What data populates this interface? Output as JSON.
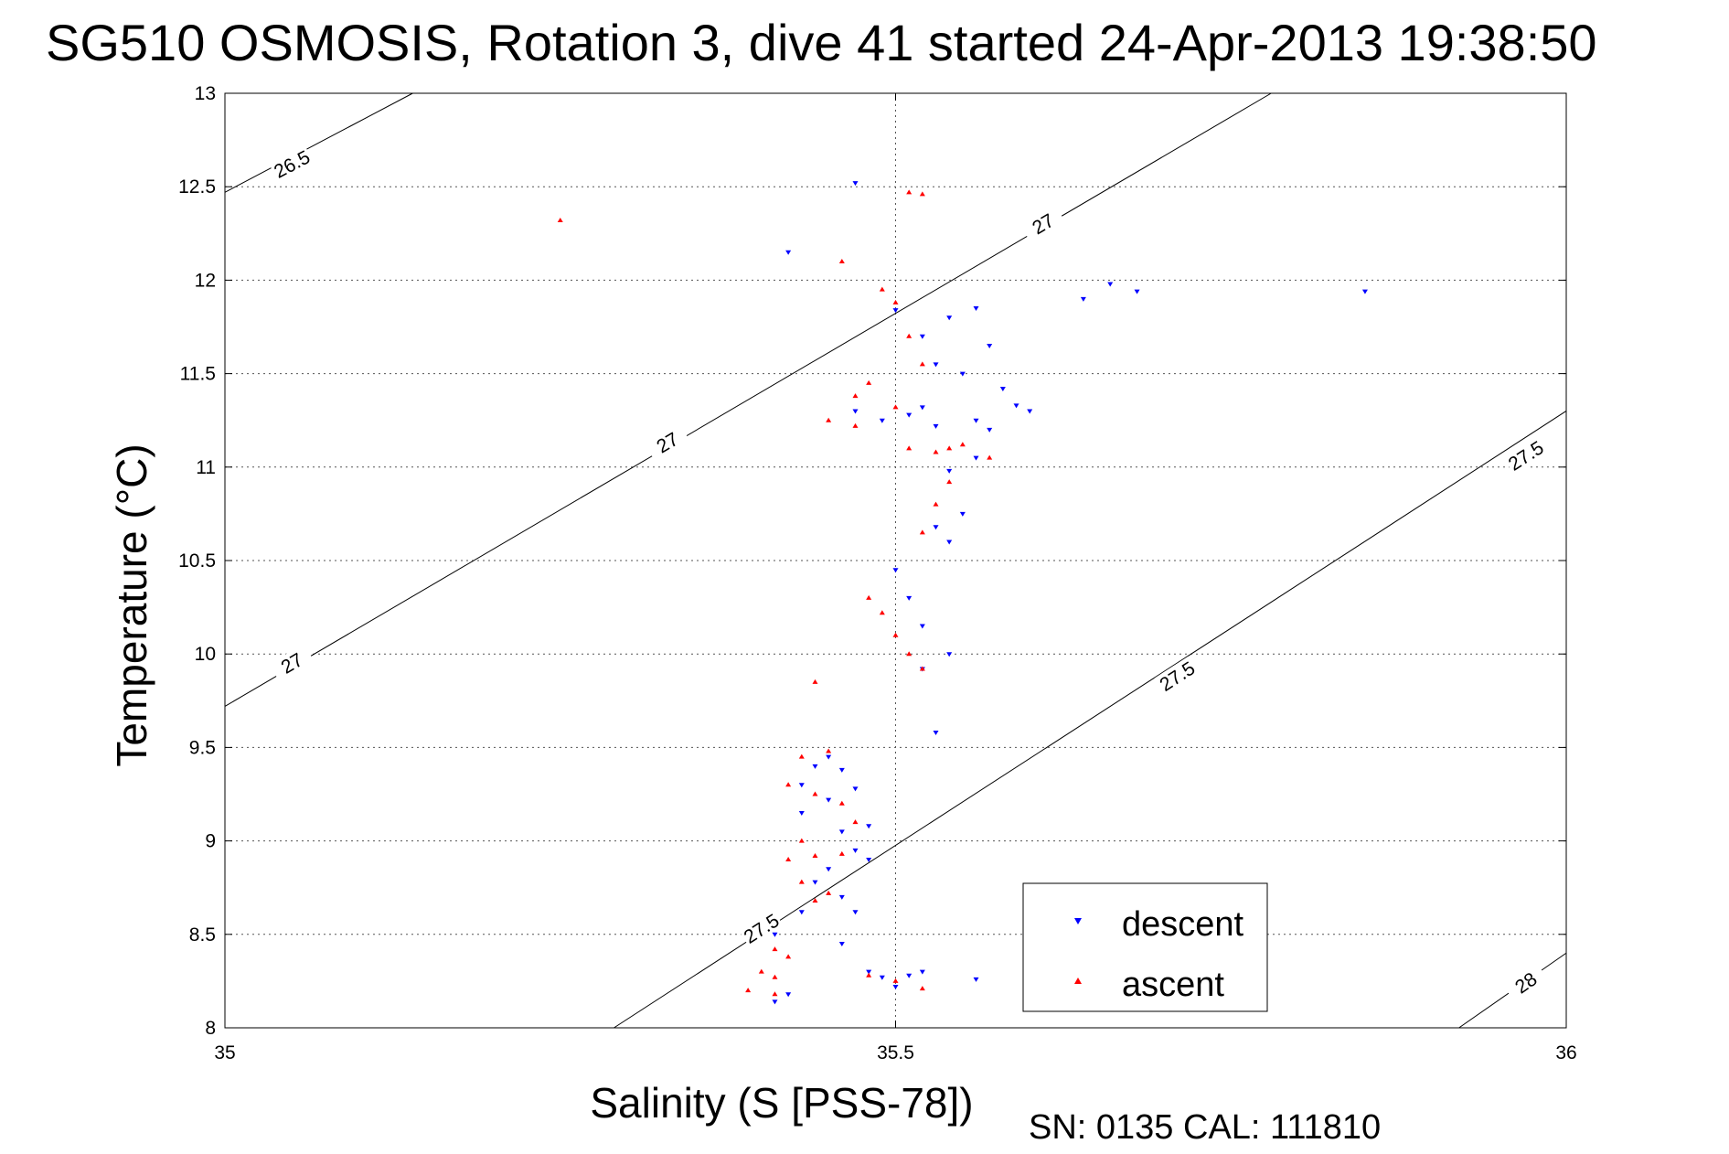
{
  "chart_data": {
    "type": "scatter",
    "title": "SG510 OSMOSIS, Rotation 3, dive 41 started 24-Apr-2013 19:38:50",
    "xlabel": "Salinity (S [PSS-78])",
    "ylabel": "Temperature (°C)",
    "xlim": [
      35,
      36
    ],
    "ylim": [
      8,
      13
    ],
    "xticks": [
      "35",
      "35.5",
      "36"
    ],
    "xtick_values": [
      35,
      35.5,
      36
    ],
    "yticks": [
      "8",
      "8.5",
      "9",
      "9.5",
      "10",
      "10.5",
      "11",
      "11.5",
      "12",
      "12.5",
      "13"
    ],
    "ytick_values": [
      8,
      8.5,
      9,
      9.5,
      10,
      10.5,
      11,
      11.5,
      12,
      12.5,
      13
    ],
    "grid": true,
    "legend_position": "bottom-right",
    "footer": "SN: 0135  CAL: 111810",
    "isopycnals": [
      {
        "label": "26.5",
        "points": [
          [
            35,
            12.47
          ],
          [
            35.14,
            13.0
          ]
        ],
        "label_pos": [
          [
            35.05,
            12.62
          ]
        ]
      },
      {
        "label": "27",
        "points": [
          [
            35,
            9.72
          ],
          [
            35.78,
            13.0
          ]
        ],
        "label_pos": [
          [
            35.05,
            9.95
          ],
          [
            35.33,
            11.13
          ],
          [
            35.61,
            12.3
          ]
        ]
      },
      {
        "label": "27.5",
        "points": [
          [
            35.29,
            8.0
          ],
          [
            36,
            11.3
          ]
        ],
        "label_pos": [
          [
            35.4,
            8.53
          ],
          [
            35.71,
            9.88
          ],
          [
            35.97,
            11.06
          ]
        ]
      },
      {
        "label": "28",
        "points": [
          [
            35.92,
            8.0
          ],
          [
            36,
            8.4
          ]
        ],
        "label_pos": [
          [
            35.97,
            8.24
          ]
        ]
      }
    ],
    "series": [
      {
        "name": "descent",
        "color": "#0000ff",
        "marker": "triangle-down",
        "x": [
          35.47,
          35.42,
          35.66,
          35.68,
          35.85,
          35.64,
          35.5,
          35.54,
          35.56,
          35.52,
          35.57,
          35.53,
          35.55,
          35.58,
          35.52,
          35.47,
          35.49,
          35.51,
          35.53,
          35.59,
          35.56,
          35.6,
          35.57,
          35.56,
          35.54,
          35.55,
          35.53,
          35.54,
          35.5,
          35.51,
          35.52,
          35.54,
          35.52,
          35.45,
          35.44,
          35.46,
          35.43,
          35.47,
          35.45,
          35.43,
          35.48,
          35.46,
          35.47,
          35.48,
          35.45,
          35.44,
          35.46,
          35.43,
          35.41,
          35.46,
          35.52,
          35.51,
          35.56,
          35.49,
          35.5,
          35.42,
          35.41,
          35.48,
          35.47,
          35.53
        ],
        "y": [
          12.52,
          12.15,
          11.98,
          11.94,
          11.94,
          11.9,
          11.84,
          11.8,
          11.85,
          11.7,
          11.65,
          11.55,
          11.5,
          11.42,
          11.32,
          11.3,
          11.25,
          11.28,
          11.22,
          11.33,
          11.25,
          11.3,
          11.2,
          11.05,
          10.98,
          10.75,
          10.68,
          10.6,
          10.45,
          10.3,
          10.15,
          10.0,
          9.92,
          9.45,
          9.4,
          9.38,
          9.3,
          9.28,
          9.22,
          9.15,
          9.08,
          9.05,
          8.95,
          8.9,
          8.85,
          8.78,
          8.7,
          8.62,
          8.5,
          8.45,
          8.3,
          8.28,
          8.26,
          8.27,
          8.22,
          8.18,
          8.14,
          8.3,
          8.62,
          9.58
        ]
      },
      {
        "name": "ascent",
        "color": "#ff0000",
        "marker": "triangle-up",
        "x": [
          35.25,
          35.46,
          35.51,
          35.52,
          35.49,
          35.5,
          35.51,
          35.52,
          35.48,
          35.47,
          35.45,
          35.47,
          35.5,
          35.51,
          35.53,
          35.54,
          35.55,
          35.57,
          35.54,
          35.53,
          35.52,
          35.48,
          35.49,
          35.5,
          35.51,
          35.52,
          35.44,
          35.45,
          35.43,
          35.42,
          35.44,
          35.46,
          35.47,
          35.43,
          35.44,
          35.46,
          35.42,
          35.43,
          35.45,
          35.44,
          35.41,
          35.42,
          35.4,
          35.41,
          35.39,
          35.48,
          35.5,
          35.52,
          35.41
        ],
        "y": [
          12.32,
          12.1,
          12.47,
          12.46,
          11.95,
          11.88,
          11.7,
          11.55,
          11.45,
          11.38,
          11.25,
          11.22,
          11.32,
          11.1,
          11.08,
          11.1,
          11.12,
          11.05,
          10.92,
          10.8,
          10.65,
          10.3,
          10.22,
          10.1,
          10.0,
          9.92,
          9.85,
          9.48,
          9.45,
          9.3,
          9.25,
          9.2,
          9.1,
          9.0,
          8.92,
          8.93,
          8.9,
          8.78,
          8.72,
          8.68,
          8.42,
          8.38,
          8.3,
          8.27,
          8.2,
          8.28,
          8.25,
          8.21,
          8.18
        ]
      }
    ]
  },
  "legend": {
    "descent_label": "descent",
    "ascent_label": "ascent"
  }
}
